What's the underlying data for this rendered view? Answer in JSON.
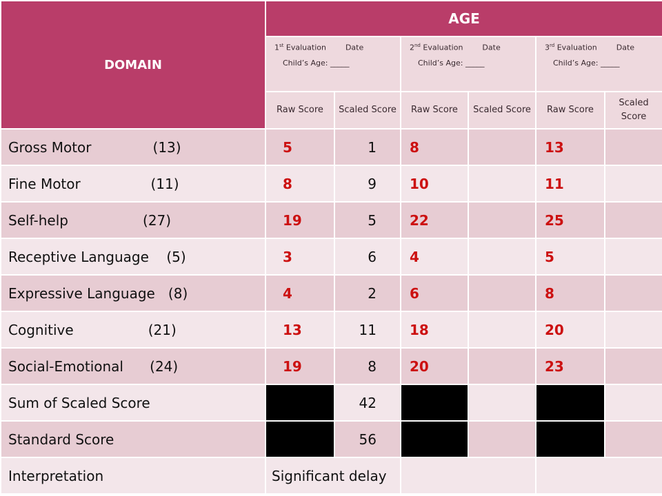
{
  "header": {
    "domain": "DOMAIN",
    "age": "AGE",
    "evaluations": [
      {
        "sup": "st",
        "num": "1",
        "title": "Evaluation",
        "date": "Date",
        "age_line": "Child’s Age: _____"
      },
      {
        "sup": "nd",
        "num": "2",
        "title": "Evaluation",
        "date": "Date",
        "age_line": "Child’s Age: _____"
      },
      {
        "sup": "rd",
        "num": "3",
        "title": "Evaluation",
        "date": "Date",
        "age_line": "Child’s Age: _____"
      }
    ],
    "scores": [
      "Raw Score",
      "Scaled Score",
      "Raw Score",
      "Scaled Score",
      "Raw Score",
      "Scaled Score"
    ]
  },
  "rows": [
    {
      "label": "Gross Motor              (13)",
      "raw1": "5",
      "scaled1": "1",
      "raw2": "8",
      "scaled2": "",
      "raw3": "13",
      "scaled3": ""
    },
    {
      "label": "Fine Motor                (11)",
      "raw1": "8",
      "scaled1": "9",
      "raw2": "10",
      "scaled2": "",
      "raw3": "11",
      "scaled3": ""
    },
    {
      "label": "Self-help                 (27)",
      "raw1": "19",
      "scaled1": "5",
      "raw2": "22",
      "scaled2": "",
      "raw3": "25",
      "scaled3": ""
    },
    {
      "label": "Receptive Language    (5)",
      "raw1": "3",
      "scaled1": "6",
      "raw2": "4",
      "scaled2": "",
      "raw3": "5",
      "scaled3": ""
    },
    {
      "label": "Expressive Language   (8)",
      "raw1": "4",
      "scaled1": "2",
      "raw2": "6",
      "scaled2": "",
      "raw3": "8",
      "scaled3": ""
    },
    {
      "label": "Cognitive                 (21)",
      "raw1": "13",
      "scaled1": "11",
      "raw2": "18",
      "scaled2": "",
      "raw3": "20",
      "scaled3": ""
    },
    {
      "label": "Social-Emotional      (24)",
      "raw1": "19",
      "scaled1": "8",
      "raw2": "20",
      "scaled2": "",
      "raw3": "23",
      "scaled3": ""
    }
  ],
  "summary": {
    "sum_label": "Sum of Scaled Score",
    "sum_value": "42",
    "standard_label": "Standard Score",
    "standard_value": "56",
    "interp_label": "Interpretation",
    "interp_value": "Significant delay"
  }
}
